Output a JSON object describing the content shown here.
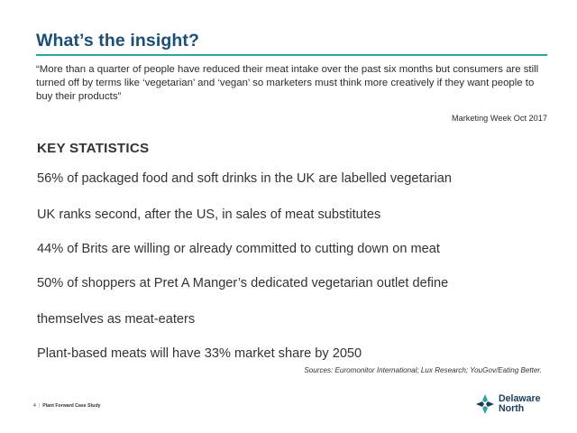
{
  "slide": {
    "title": "What’s the insight?",
    "quote": "“More than a quarter of people have reduced their meat intake over the past six months but consumers are still turned off by terms like ‘vegetarian’ and ‘vegan’ so marketers must think more creatively if they want people to buy their products”",
    "attribution": "Marketing Week Oct 2017",
    "stats_heading": "KEY STATISTICS",
    "stats": [
      "56% of packaged food and soft drinks in the UK are labelled vegetarian",
      "UK ranks second, after the US, in sales of meat substitutes",
      "44% of Brits are willing or already committed to cutting down on meat",
      "50% of shoppers at Pret A Manger’s dedicated vegetarian outlet define",
      "themselves as meat-eaters",
      "Plant-based meats will have 33% market share by 2050"
    ],
    "sources": "Sources: Euromonitor International; Lux Research; YouGov/Eating Better."
  },
  "footer": {
    "page_number": "4",
    "separator": "|",
    "doc_name": "Plant Forward Case Study"
  },
  "logo": {
    "line1": "Delaware",
    "line2": "North",
    "icon": "delaware-north-star-logo",
    "colors": {
      "teal": "#2aa7a4",
      "navy": "#1c3c5c"
    }
  },
  "colors": {
    "title": "#1a4f7a",
    "rule": "#2aa7a4"
  }
}
